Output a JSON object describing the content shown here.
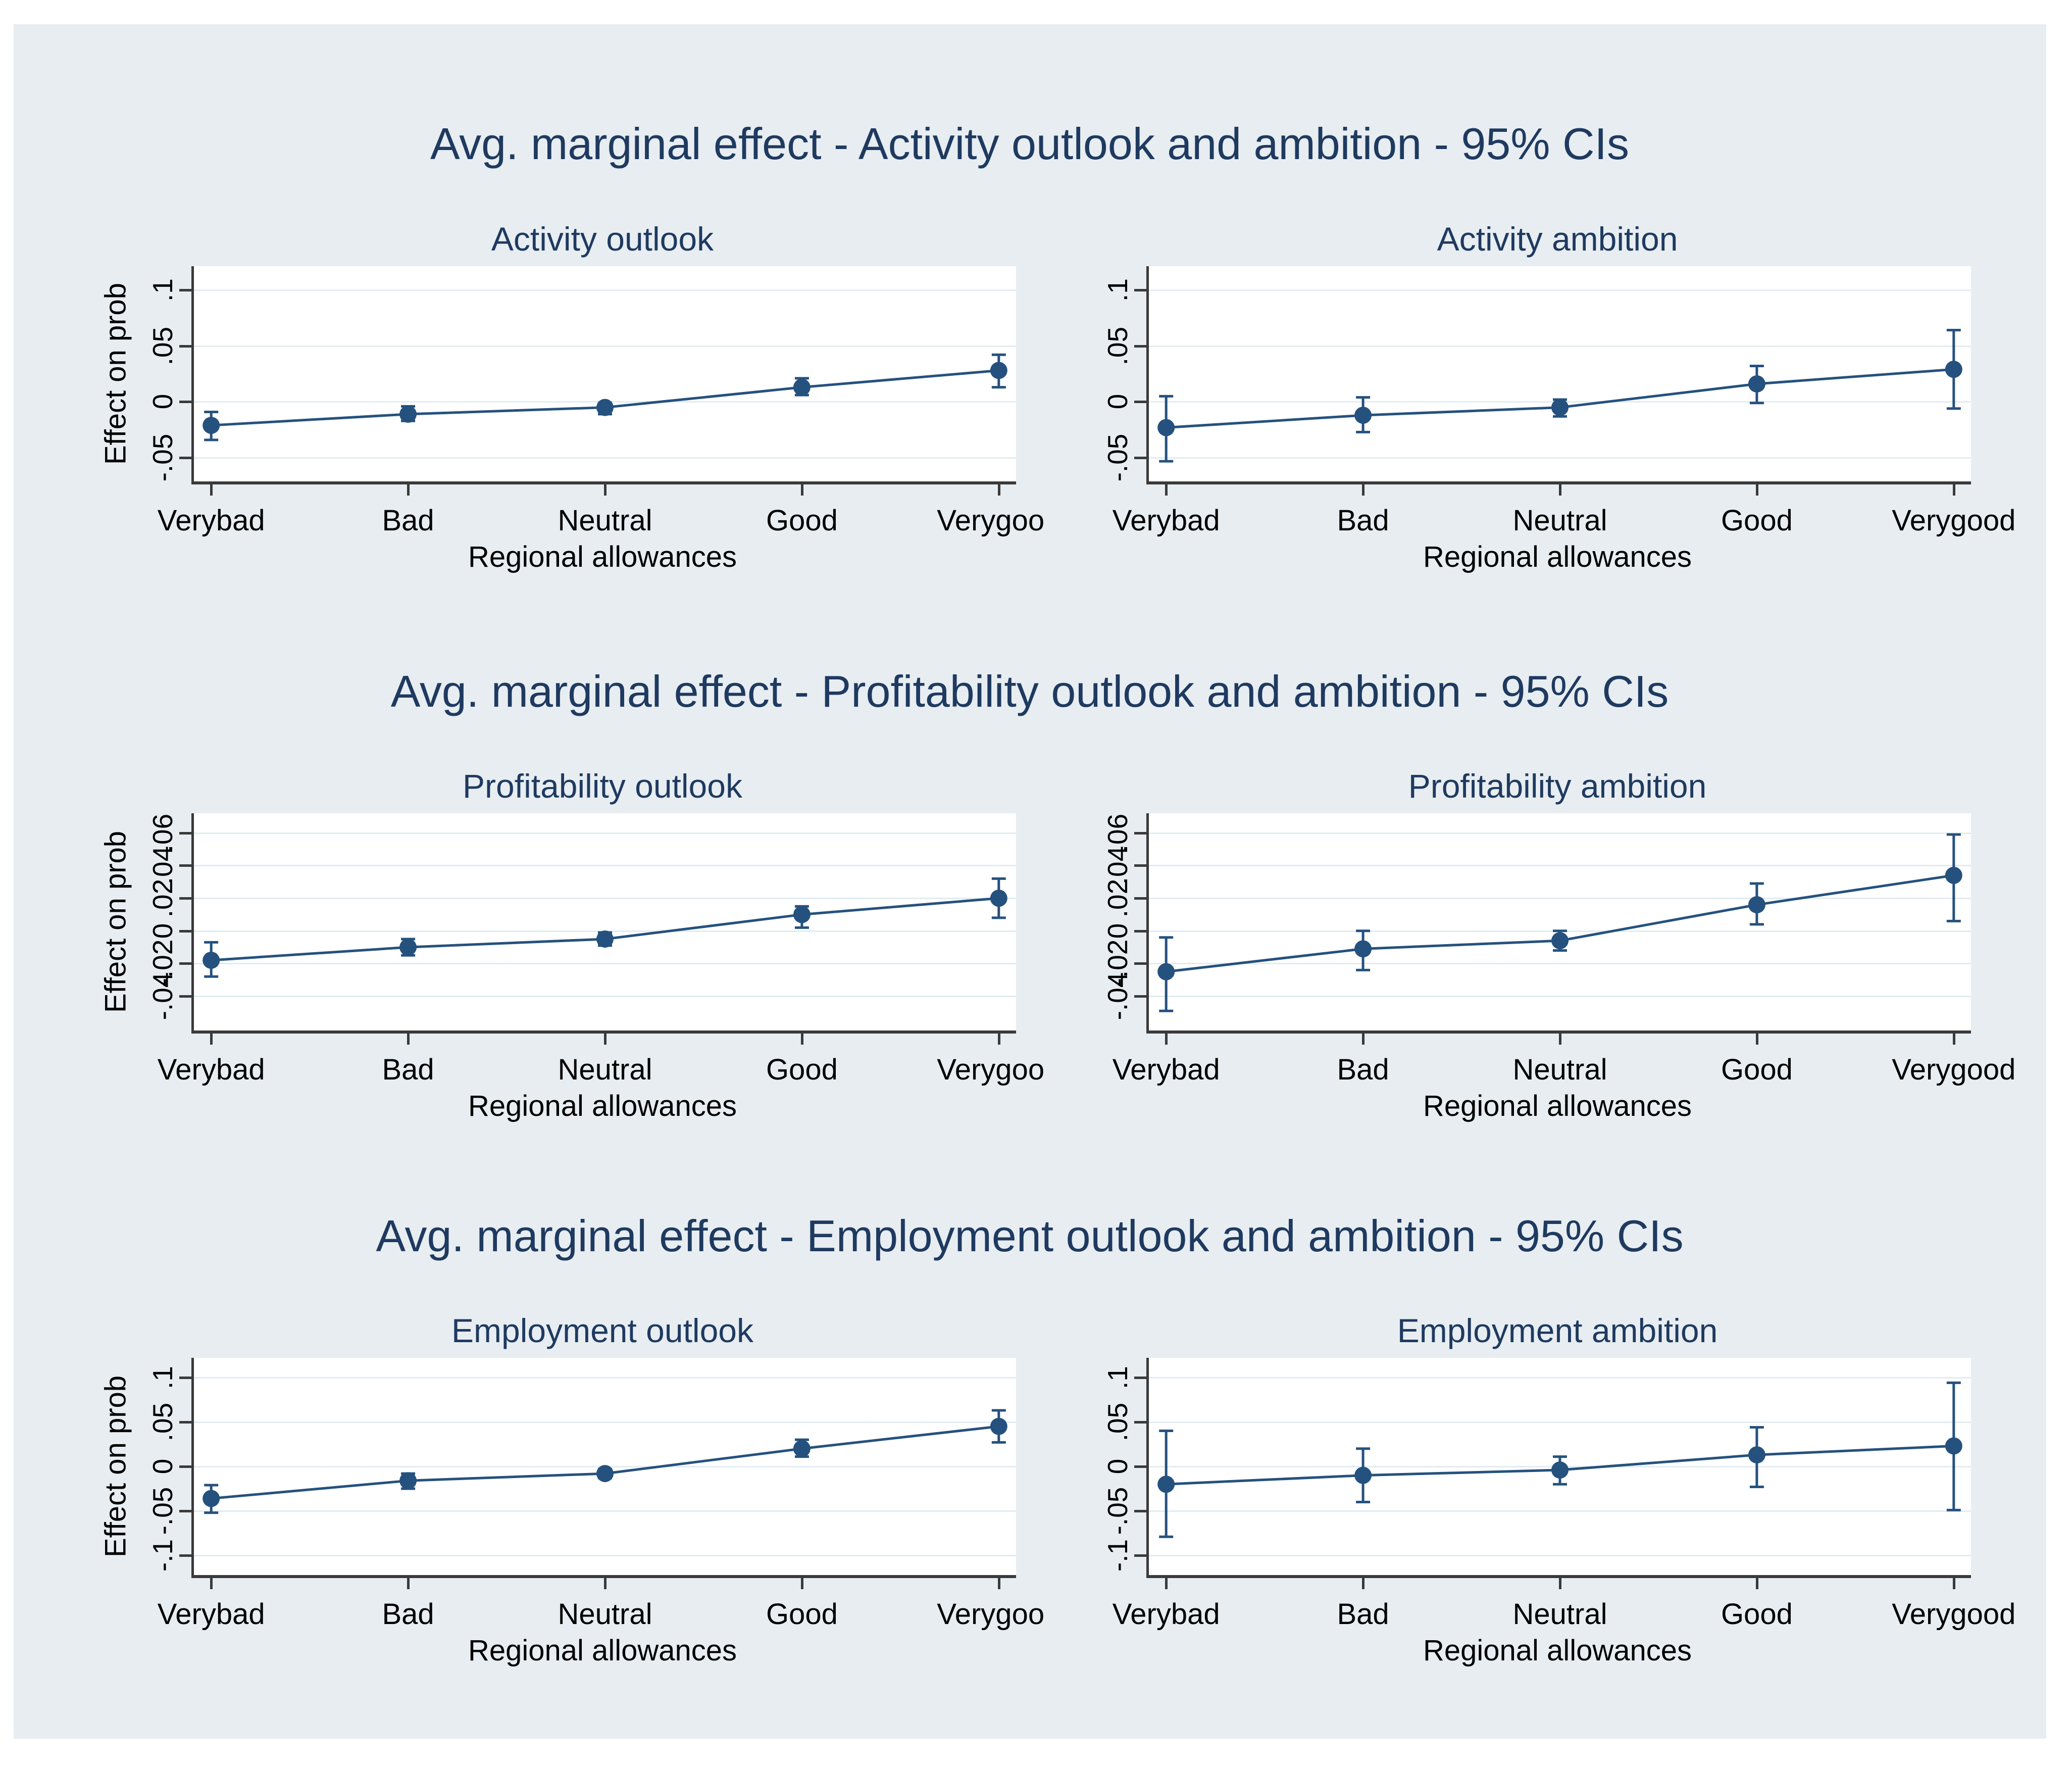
{
  "page": {
    "background": "#ffffff",
    "panel_background": "#e7edf1",
    "plot_background": "#ffffff",
    "accent_color": "#25517e",
    "title_color": "#1f3a60",
    "axis_line_color": "#3a3a3a",
    "grid_color": "#e2ecf2",
    "text_color": "#000000",
    "ci_level": "95% CIs"
  },
  "chart_data": {
    "type": "line",
    "figures": [
      {
        "title": "Avg. marginal effect - Activity outlook and ambition - 95% CIs",
        "subplots": [
          {
            "title": "Activity outlook",
            "ylabel": "Effect on prob",
            "xlabel": "Regional allowances",
            "categories": [
              "Verybad",
              "Bad",
              "Neutral",
              "Good",
              "Verygood"
            ],
            "yticks": [
              0.1,
              0.05,
              0,
              -0.05
            ],
            "ytick_labels": [
              ".1",
              ".05",
              "0",
              "-.05"
            ],
            "ylim": [
              -0.071,
              0.121
            ],
            "grid": true,
            "series": {
              "name": "Avg. marginal effect",
              "values": [
                -0.021,
                -0.011,
                -0.005,
                0.013,
                0.028
              ],
              "ci_low": [
                -0.034,
                -0.017,
                -0.011,
                0.006,
                0.013
              ],
              "ci_high": [
                -0.009,
                -0.004,
                -0.001,
                0.021,
                0.042
              ]
            }
          },
          {
            "title": "Activity ambition",
            "ylabel": null,
            "xlabel": "Regional allowances",
            "categories": [
              "Verybad",
              "Bad",
              "Neutral",
              "Good",
              "Verygood"
            ],
            "yticks": [
              0.1,
              0.05,
              0,
              -0.05
            ],
            "ytick_labels": [
              ".1",
              ".05",
              "0",
              "-.05"
            ],
            "ylim": [
              -0.071,
              0.121
            ],
            "grid": true,
            "series": {
              "name": "Avg. marginal effect",
              "values": [
                -0.023,
                -0.012,
                -0.005,
                0.016,
                0.029
              ],
              "ci_low": [
                -0.053,
                -0.027,
                -0.013,
                -0.001,
                -0.006
              ],
              "ci_high": [
                0.005,
                0.004,
                0.002,
                0.032,
                0.064
              ]
            }
          }
        ]
      },
      {
        "title": "Avg. marginal effect - Profitability outlook and ambition - 95% CIs",
        "subplots": [
          {
            "title": "Profitability outlook",
            "ylabel": "Effect on prob",
            "xlabel": "Regional allowances",
            "categories": [
              "Verybad",
              "Bad",
              "Neutral",
              "Good",
              "Verygood"
            ],
            "yticks": [
              0.06,
              0.04,
              0.02,
              0,
              -0.02,
              -0.04
            ],
            "ytick_labels": [
              ".06",
              ".04",
              ".02",
              "0",
              "-.02",
              "-.04"
            ],
            "ylim": [
              -0.061,
              0.072
            ],
            "grid": true,
            "series": {
              "name": "Avg. marginal effect",
              "values": [
                -0.018,
                -0.01,
                -0.005,
                0.01,
                0.02
              ],
              "ci_low": [
                -0.028,
                -0.015,
                -0.009,
                0.002,
                0.008
              ],
              "ci_high": [
                -0.007,
                -0.005,
                -0.001,
                0.015,
                0.032
              ]
            }
          },
          {
            "title": "Profitability ambition",
            "ylabel": null,
            "xlabel": "Regional allowances",
            "categories": [
              "Verybad",
              "Bad",
              "Neutral",
              "Good",
              "Verygood"
            ],
            "yticks": [
              0.06,
              0.04,
              0.02,
              0,
              -0.02,
              -0.04
            ],
            "ytick_labels": [
              ".06",
              ".04",
              ".02",
              "0",
              "-.02",
              "-.04"
            ],
            "ylim": [
              -0.061,
              0.072
            ],
            "grid": true,
            "series": {
              "name": "Avg. marginal effect",
              "values": [
                -0.025,
                -0.011,
                -0.006,
                0.016,
                0.034
              ],
              "ci_low": [
                -0.049,
                -0.024,
                -0.012,
                0.004,
                0.006
              ],
              "ci_high": [
                -0.004,
                0.0,
                0.0,
                0.029,
                0.059
              ]
            }
          }
        ]
      },
      {
        "title": "Avg. marginal effect - Employment outlook and ambition - 95% CIs",
        "subplots": [
          {
            "title": "Employment outlook",
            "ylabel": "Effect on prob",
            "xlabel": "Regional allowances",
            "categories": [
              "Verybad",
              "Bad",
              "Neutral",
              "Good",
              "Verygood"
            ],
            "yticks": [
              0.1,
              0.05,
              0,
              -0.05,
              -0.1
            ],
            "ytick_labels": [
              ".1",
              ".05",
              "0",
              "-.05",
              "-.1"
            ],
            "ylim": [
              -0.122,
              0.122
            ],
            "grid": true,
            "series": {
              "name": "Avg. marginal effect",
              "values": [
                -0.036,
                -0.016,
                -0.008,
                0.02,
                0.045
              ],
              "ci_low": [
                -0.052,
                -0.025,
                -0.013,
                0.011,
                0.027
              ],
              "ci_high": [
                -0.021,
                -0.008,
                -0.003,
                0.03,
                0.063
              ]
            }
          },
          {
            "title": "Employment ambition",
            "ylabel": null,
            "xlabel": "Regional allowances",
            "categories": [
              "Verybad",
              "Bad",
              "Neutral",
              "Good",
              "Verygood"
            ],
            "yticks": [
              0.1,
              0.05,
              0,
              -0.05,
              -0.1
            ],
            "ytick_labels": [
              ".1",
              ".05",
              "0",
              "-.05",
              "-.1"
            ],
            "ylim": [
              -0.122,
              0.122
            ],
            "grid": true,
            "series": {
              "name": "Avg. marginal effect",
              "values": [
                -0.02,
                -0.01,
                -0.004,
                0.013,
                0.023
              ],
              "ci_low": [
                -0.079,
                -0.04,
                -0.02,
                -0.023,
                -0.049
              ],
              "ci_high": [
                0.04,
                0.02,
                0.011,
                0.044,
                0.094
              ]
            }
          }
        ]
      }
    ]
  }
}
